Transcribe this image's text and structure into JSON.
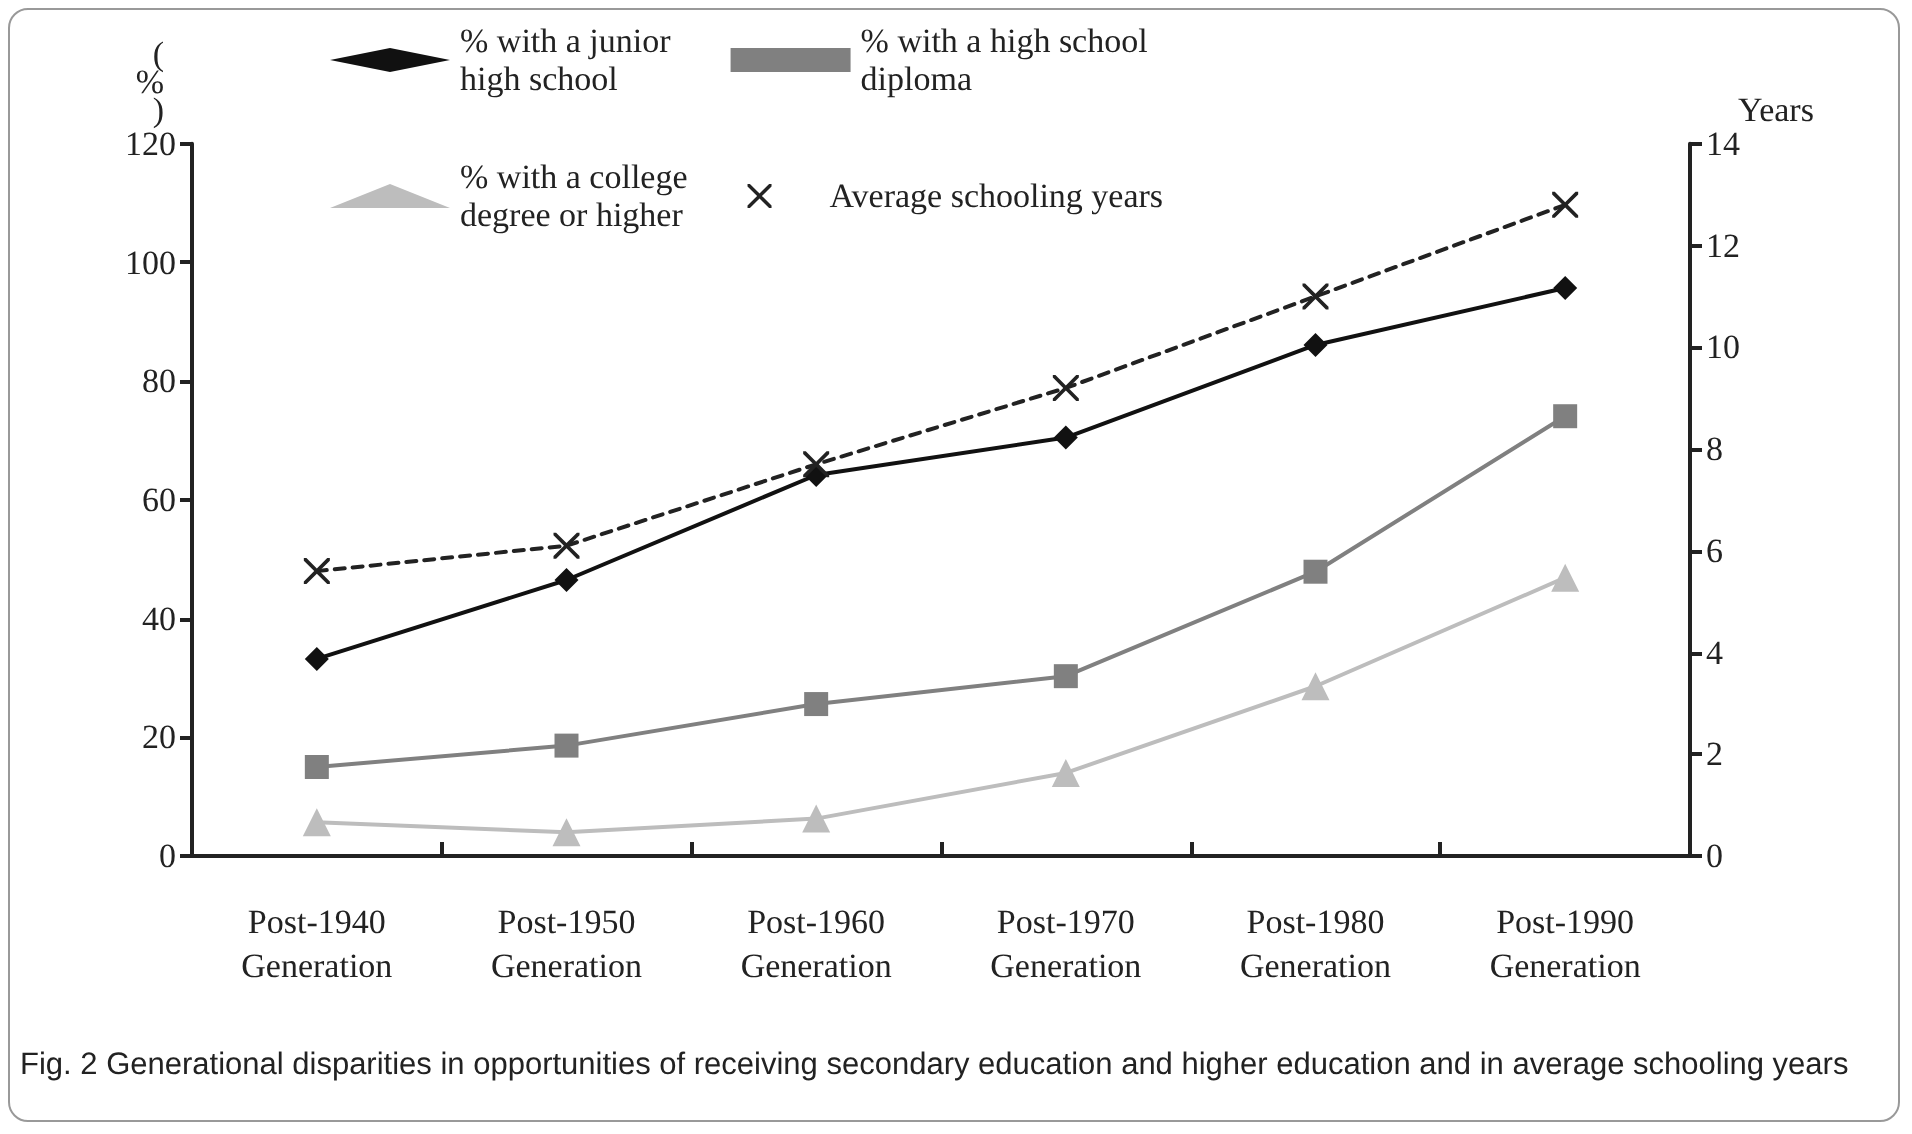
{
  "chart_data": {
    "type": "line",
    "categories": [
      "Post-1940\nGeneration",
      "Post-1950\nGeneration",
      "Post-1960\nGeneration",
      "Post-1970\nGeneration",
      "Post-1980\nGeneration",
      "Post-1990\nGeneration"
    ],
    "series": [
      {
        "name": "% with a junior\nhigh school",
        "color": "#111111",
        "marker": "diamond",
        "values": [
          33.2,
          46.5,
          64.2,
          70.5,
          86.1,
          95.7
        ]
      },
      {
        "name": "% with a high school\ndiploma",
        "color": "#808080",
        "marker": "square",
        "values": [
          15.0,
          18.6,
          25.6,
          30.3,
          47.9,
          74.1
        ]
      },
      {
        "name": "% with a college\ndegree or higher",
        "color": "#bdbdbd",
        "marker": "triangle",
        "values": [
          5.7,
          4.0,
          6.3,
          14.0,
          28.6,
          46.9
        ]
      },
      {
        "name": "Average schooling years",
        "color": "#222222",
        "marker": "cross",
        "line_style": "dashed",
        "axis": "y2",
        "values": [
          5.6,
          6.1,
          7.7,
          9.2,
          11.0,
          12.8
        ]
      }
    ],
    "ylabel": "(%)",
    "y2label": "Years",
    "ylim": [
      0,
      120
    ],
    "yticks": [
      0,
      20,
      40,
      60,
      80,
      100,
      120
    ],
    "y2lim": [
      0,
      14
    ],
    "y2ticks": [
      0,
      2,
      4,
      6,
      8,
      10,
      12,
      14
    ],
    "grid": false,
    "legend": "top",
    "annotations": [
      "Fig. 2 Generational disparities in opportunities of receiving secondary education and higher education and in average schooling years"
    ]
  }
}
